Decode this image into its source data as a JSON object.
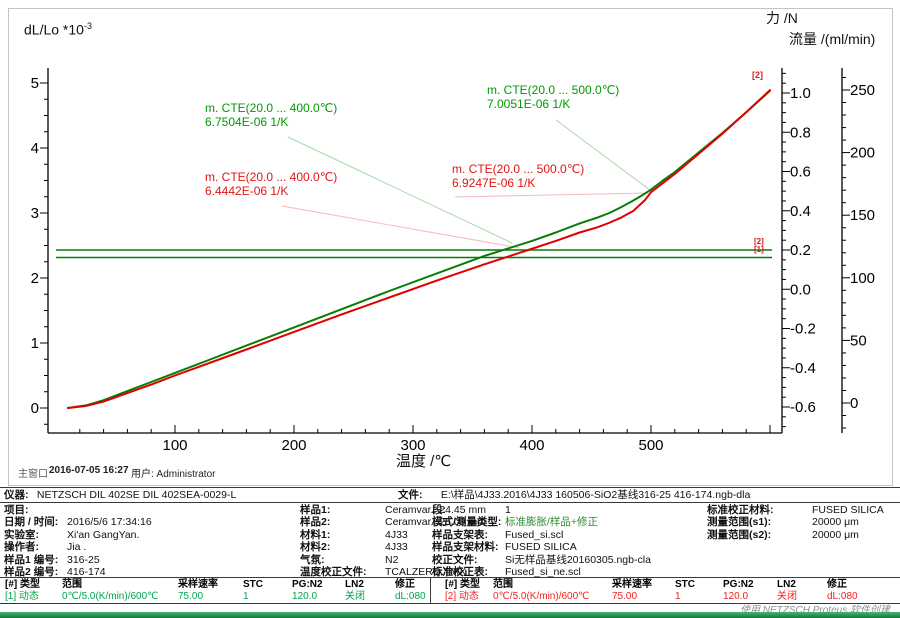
{
  "chart_data": {
    "type": "line",
    "title": "",
    "xlabel": "温度 /℃",
    "ylabel_left": "dL/Lo *10",
    "ylabel_left_sup": "-3",
    "ylabel_right_force": "力 /N",
    "ylabel_right_flow": "流量 /(ml/min)",
    "xlim": [
      0,
      610
    ],
    "ylim_left": [
      -0.4,
      5.3
    ],
    "force_axis_lim": [
      -0.7,
      1.1
    ],
    "flow_axis_lim": [
      -20,
      260
    ],
    "x_ticks": [
      "100",
      "200",
      "300",
      "400",
      "500"
    ],
    "x_tick_values": [
      100,
      200,
      300,
      400,
      500
    ],
    "dl_ticks": [
      "0",
      "1",
      "2",
      "3",
      "4",
      "5"
    ],
    "dl_tick_values": [
      0,
      1,
      2,
      3,
      4,
      5
    ],
    "force_ticks": [
      "1.0",
      "0.8",
      "0.6",
      "0.4",
      "0.2",
      "0.0",
      "-0.2",
      "-0.4",
      "-0.6"
    ],
    "force_tick_values": [
      1.0,
      0.8,
      0.6,
      0.4,
      0.2,
      0.0,
      -0.2,
      -0.4,
      -0.6
    ],
    "flow_ticks": [
      "250",
      "200",
      "150",
      "100",
      "50",
      "0"
    ],
    "flow_tick_values": [
      250,
      200,
      150,
      100,
      50,
      0
    ],
    "series": [
      {
        "name": "dL/Lo sample [1]",
        "color": "#077d07",
        "x": [
          10,
          25,
          40,
          60,
          80,
          100,
          130,
          160,
          200,
          240,
          280,
          320,
          360,
          400,
          420,
          440,
          455,
          465,
          475,
          485,
          495,
          500,
          510,
          520,
          540,
          560,
          580,
          600
        ],
        "y": [
          0,
          0.04,
          0.12,
          0.26,
          0.4,
          0.54,
          0.75,
          0.96,
          1.24,
          1.52,
          1.8,
          2.07,
          2.34,
          2.57,
          2.7,
          2.84,
          2.93,
          3.0,
          3.09,
          3.19,
          3.3,
          3.36,
          3.5,
          3.63,
          3.93,
          4.23,
          4.55,
          4.88
        ]
      },
      {
        "name": "dL/Lo sample [2]",
        "color": "#e00000",
        "x": [
          10,
          25,
          40,
          60,
          80,
          100,
          130,
          160,
          200,
          240,
          280,
          320,
          360,
          400,
          420,
          440,
          455,
          465,
          475,
          485,
          495,
          500,
          510,
          520,
          540,
          560,
          580,
          600
        ],
        "y": [
          0,
          0.03,
          0.1,
          0.23,
          0.36,
          0.5,
          0.7,
          0.9,
          1.17,
          1.44,
          1.7,
          1.96,
          2.21,
          2.45,
          2.57,
          2.7,
          2.78,
          2.85,
          2.93,
          3.03,
          3.2,
          3.32,
          3.46,
          3.6,
          3.91,
          4.22,
          4.55,
          4.89
        ]
      }
    ],
    "force_lines": [
      {
        "label": "[2]",
        "value_N": 0.2
      },
      {
        "label": "[1]",
        "value_N": 0.162
      }
    ],
    "curve_end_label": "[2]",
    "annotations": [
      {
        "color": "green",
        "line1": "m. CTE(20.0 ... 400.0℃)",
        "line2": "6.7504E-06 1/K"
      },
      {
        "color": "red",
        "line1": "m. CTE(20.0 ... 400.0℃)",
        "line2": "6.4442E-06 1/K"
      },
      {
        "color": "green",
        "line1": "m. CTE(20.0 ... 500.0℃)",
        "line2": "7.0051E-06 1/K"
      },
      {
        "color": "red",
        "line1": "m. CTE(20.0 ... 500.0℃)",
        "line2": "6.9247E-06 1/K"
      }
    ]
  },
  "status": {
    "window_label": "主窗口",
    "datetime": "2016-07-05 16:27",
    "user": "用户: Administrator"
  },
  "info": {
    "row1_left": {
      "label": "仪器:",
      "value": "NETZSCH DIL 402SE DIL 402SEA-0029-L"
    },
    "row1_right": {
      "label": "文件:",
      "value": "E:\\样品\\4J33.2016\\4J33 160506-SiO2基线316-25 416-174.ngb-dla"
    },
    "col1": [
      {
        "label": "项目:",
        "value": ""
      },
      {
        "label": "日期 / 时间:",
        "value": "2016/5/6 17:34:16"
      },
      {
        "label": "实验室:",
        "value": "Xi'an GangYan."
      },
      {
        "label": "操作者:",
        "value": "Jia ."
      },
      {
        "label": "样品1 编号:",
        "value": "316-25"
      },
      {
        "label": "样品2 编号:",
        "value": "416-174"
      }
    ],
    "col2": [
      {
        "label": "样品1:",
        "value": "Ceramvar., 24.45 mm"
      },
      {
        "label": "样品2:",
        "value": "Ceramvar., 25.09 mm"
      },
      {
        "label": "材料1:",
        "value": "4J33"
      },
      {
        "label": "材料2:",
        "value": "4J33"
      },
      {
        "label": "气氛:",
        "value": "N2"
      },
      {
        "label": "温度校正文件:",
        "value": "TCALZERO.TMX"
      }
    ],
    "col3": [
      {
        "label": "段:",
        "value": "1"
      },
      {
        "label": "模式/测量类型:",
        "value": "标准膨胀/样品+修正"
      },
      {
        "label": "样品支架表:",
        "value": "Fused_si.scl"
      },
      {
        "label": "样品支架材料:",
        "value": "FUSED SILICA"
      },
      {
        "label": "校正文件:",
        "value": "Si无样品基线20160305.ngb-cla"
      },
      {
        "label": "标准校正表:",
        "value": "Fused_si_ne.scl"
      }
    ],
    "col4": [
      {
        "label": "标准校正材料:",
        "value": "FUSED SILICA"
      },
      {
        "label": "测量范围(s1):",
        "value": "20000 μm"
      },
      {
        "label": "测量范围(s2):",
        "value": "20000 μm"
      }
    ]
  },
  "segments": {
    "headers": [
      "[#] 类型",
      "范围",
      "采样速率",
      "STC",
      "PG:N2",
      "LN2",
      "修正"
    ],
    "left_row": [
      "[1] 动态",
      "0℃/5.0(K/min)/600℃",
      "75.00",
      "1",
      "120.0",
      "关闭",
      "dL:080"
    ],
    "right_row": [
      "[2] 动态",
      "0℃/5.0(K/min)/600℃",
      "75.00",
      "1",
      "120.0",
      "关闭",
      "dL:080"
    ]
  },
  "footer": "使用 NETZSCH Proteus 软件创建"
}
